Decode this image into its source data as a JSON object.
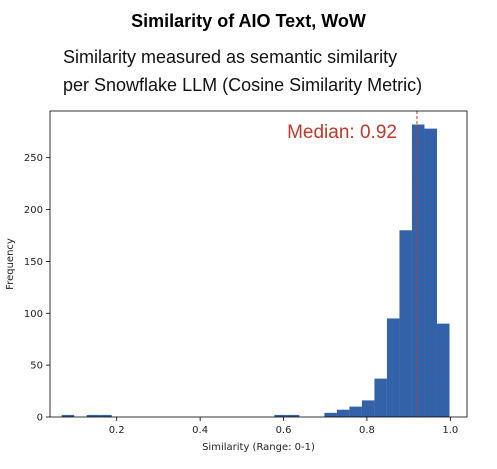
{
  "header": {
    "title": "Similarity of AIO Text, WoW",
    "subtitle_line1": "Similarity measured as semantic similarity",
    "subtitle_line2": "per Snowflake LLM (Cosine Similarity Metric)"
  },
  "chart_data": {
    "type": "bar",
    "xlabel": "Similarity (Range: 0-1)",
    "ylabel": "Frequency",
    "xlim": [
      0.04,
      1.04
    ],
    "ylim": [
      0,
      295
    ],
    "x_ticks": [
      0.2,
      0.4,
      0.6,
      0.8,
      1.0
    ],
    "x_tick_labels": [
      "0.2",
      "0.4",
      "0.6",
      "0.8",
      "1.0"
    ],
    "y_ticks": [
      0,
      50,
      100,
      150,
      200,
      250
    ],
    "y_tick_labels": [
      "0",
      "50",
      "100",
      "150",
      "200",
      "250"
    ],
    "bar_color": "#3462a8",
    "bins": [
      {
        "start": 0.068,
        "end": 0.098,
        "value": 2
      },
      {
        "start": 0.128,
        "end": 0.158,
        "value": 2
      },
      {
        "start": 0.158,
        "end": 0.188,
        "value": 2
      },
      {
        "start": 0.578,
        "end": 0.608,
        "value": 2
      },
      {
        "start": 0.608,
        "end": 0.638,
        "value": 2
      },
      {
        "start": 0.698,
        "end": 0.728,
        "value": 4
      },
      {
        "start": 0.728,
        "end": 0.758,
        "value": 7
      },
      {
        "start": 0.758,
        "end": 0.788,
        "value": 10
      },
      {
        "start": 0.788,
        "end": 0.818,
        "value": 16
      },
      {
        "start": 0.818,
        "end": 0.848,
        "value": 37
      },
      {
        "start": 0.848,
        "end": 0.878,
        "value": 95
      },
      {
        "start": 0.878,
        "end": 0.908,
        "value": 180
      },
      {
        "start": 0.908,
        "end": 0.938,
        "value": 282
      },
      {
        "start": 0.938,
        "end": 0.968,
        "value": 278
      },
      {
        "start": 0.968,
        "end": 0.998,
        "value": 90
      }
    ],
    "median": {
      "value": 0.92,
      "label": "Median: 0.92",
      "color": "#c0392b"
    },
    "grid": false,
    "legend": "none"
  }
}
